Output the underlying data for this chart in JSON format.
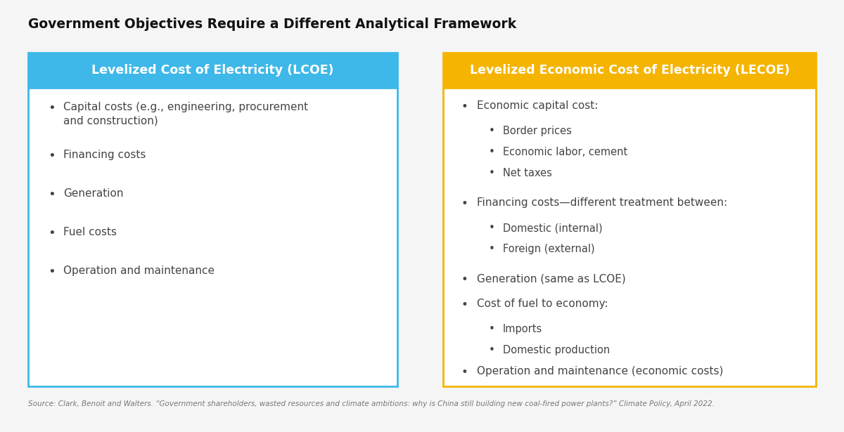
{
  "title": "Government Objectives Require a Different Analytical Framework",
  "title_fontsize": 13.5,
  "title_fontweight": "bold",
  "background_color": "#f5f5f5",
  "source_text": "Source: Clark, Benoit and Walters. “Government shareholders, wasted resources and climate ambitions: why is China still building new coal-fired power plants?” Climate Policy, April 2022.",
  "lcoe_header": "Levelized Cost of Electricity (LCOE)",
  "lcoe_header_bg": "#3db8e8",
  "lcoe_header_color": "#ffffff",
  "lcoe_border_color": "#3db8e8",
  "lcoe_bg": "#ffffff",
  "lcoe_items": [
    {
      "text": "Capital costs (e.g., engineering, procurement\nand construction)",
      "level": 1
    },
    {
      "text": "Financing costs",
      "level": 1
    },
    {
      "text": "Generation",
      "level": 1
    },
    {
      "text": "Fuel costs",
      "level": 1
    },
    {
      "text": "Operation and maintenance",
      "level": 1
    }
  ],
  "lecoe_header": "Levelized Economic Cost of Electricity (LECOE)",
  "lecoe_header_bg": "#f5b400",
  "lecoe_header_color": "#ffffff",
  "lecoe_border_color": "#f5b400",
  "lecoe_bg": "#ffffff",
  "lecoe_items": [
    {
      "text": "Economic capital cost:",
      "level": 1
    },
    {
      "text": "Border prices",
      "level": 2
    },
    {
      "text": "Economic labor, cement",
      "level": 2
    },
    {
      "text": "Net taxes",
      "level": 2
    },
    {
      "text": "Financing costs—different treatment between:",
      "level": 1
    },
    {
      "text": "Domestic (internal)",
      "level": 2
    },
    {
      "text": "Foreign (external)",
      "level": 2
    },
    {
      "text": "Generation (same as LCOE)",
      "level": 1
    },
    {
      "text": "Cost of fuel to economy:",
      "level": 1
    },
    {
      "text": "Imports",
      "level": 2
    },
    {
      "text": "Domestic production",
      "level": 2
    },
    {
      "text": "Operation and maintenance (economic costs)",
      "level": 1
    }
  ],
  "text_color": "#444444",
  "item_fontsize": 11,
  "header_fontsize": 12.5
}
